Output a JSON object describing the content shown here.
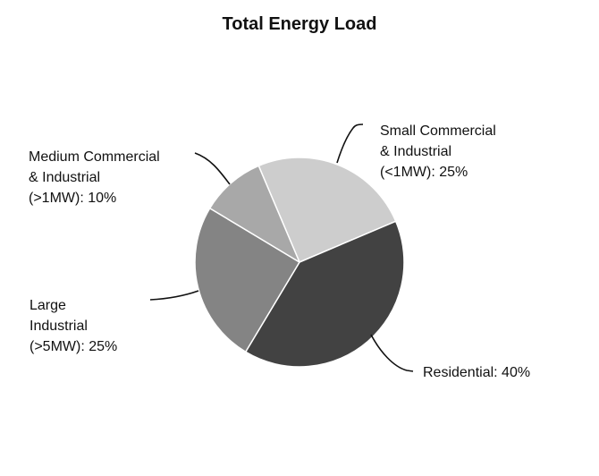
{
  "chart_data": {
    "type": "pie",
    "title": "Total Energy Load",
    "slices": [
      {
        "label": "Small Commercial & Industrial (<1MW)",
        "value": 25,
        "color": "#cdcdcd",
        "text_lines": [
          "Small Commercial",
          "& Industrial",
          "(<1MW): 25%"
        ]
      },
      {
        "label": "Residential",
        "value": 40,
        "color": "#424242",
        "text_lines": [
          "Residential: 40%"
        ]
      },
      {
        "label": "Large Industrial (>5MW)",
        "value": 25,
        "color": "#848484",
        "text_lines": [
          "Large",
          "Industrial",
          "(>5MW): 25%"
        ]
      },
      {
        "label": "Medium Commercial & Industrial (>1MW)",
        "value": 10,
        "color": "#a8a8a8",
        "text_lines": [
          "Medium Commercial",
          "& Industrial",
          "(>1MW): 10%"
        ]
      }
    ],
    "legend": "none",
    "start_angle_deg": -23,
    "direction": "clockwise"
  }
}
